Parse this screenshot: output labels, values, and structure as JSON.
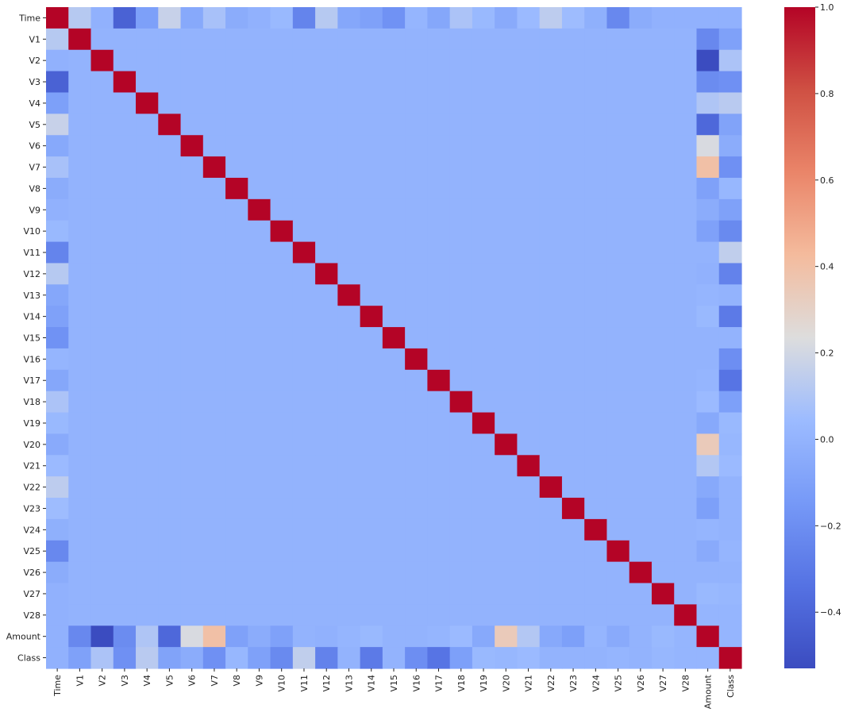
{
  "chart_data": {
    "type": "heatmap",
    "title": "",
    "variables": [
      "Time",
      "V1",
      "V2",
      "V3",
      "V4",
      "V5",
      "V6",
      "V7",
      "V8",
      "V9",
      "V10",
      "V11",
      "V12",
      "V13",
      "V14",
      "V15",
      "V16",
      "V17",
      "V18",
      "V19",
      "V20",
      "V21",
      "V22",
      "V23",
      "V24",
      "V25",
      "V26",
      "V27",
      "V28",
      "Amount",
      "Class"
    ],
    "correlations_with_time": [
      1.0,
      0.12,
      -0.01,
      -0.42,
      -0.11,
      0.17,
      -0.06,
      0.08,
      -0.04,
      -0.01,
      0.03,
      -0.25,
      0.12,
      -0.07,
      -0.1,
      -0.18,
      0.01,
      -0.07,
      0.09,
      0.03,
      -0.05,
      0.04,
      0.14,
      0.05,
      -0.02,
      -0.23,
      -0.04,
      -0.01,
      -0.01,
      -0.01,
      -0.01
    ],
    "correlations_with_amount": [
      -0.01,
      -0.23,
      -0.53,
      -0.21,
      0.1,
      -0.39,
      0.22,
      0.4,
      -0.1,
      -0.04,
      -0.1,
      0.0,
      -0.01,
      0.01,
      0.03,
      0.0,
      0.0,
      0.01,
      0.04,
      -0.06,
      0.34,
      0.11,
      -0.06,
      -0.11,
      0.01,
      -0.05,
      0.0,
      0.03,
      0.01,
      1.0,
      0.01
    ],
    "correlations_with_class": [
      -0.01,
      -0.1,
      0.09,
      -0.19,
      0.13,
      -0.09,
      -0.04,
      -0.19,
      0.02,
      -0.1,
      -0.22,
      0.15,
      -0.26,
      0.0,
      -0.3,
      0.0,
      -0.2,
      -0.33,
      -0.11,
      0.03,
      0.02,
      0.04,
      0.0,
      0.0,
      0.0,
      0.01,
      0.0,
      0.02,
      0.01,
      0.01,
      1.0
    ],
    "other_pairs_value": 0.0,
    "diagonal_value": 1.0,
    "colormap": "coolwarm",
    "colorbar": {
      "range": [
        -0.53,
        1.0
      ],
      "ticks": [
        1.0,
        0.8,
        0.6,
        0.4,
        0.2,
        0.0,
        -0.2,
        -0.4
      ],
      "tick_labels": [
        "1.0",
        "0.8",
        "0.6",
        "0.4",
        "0.2",
        "0.0",
        "−0.2",
        "−0.4"
      ]
    }
  }
}
